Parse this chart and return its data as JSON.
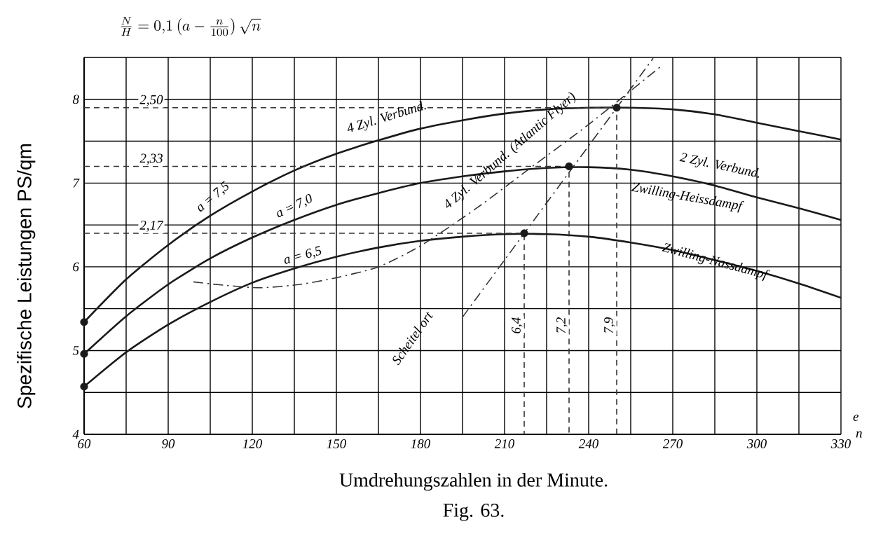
{
  "chart_data": {
    "type": "line",
    "title": "\\frac{N}{H} = 0{,}1\\left(a - \\frac{n}{100}\\right)\\sqrt{n}",
    "xlabel": "Umdrehungszahlen in der Minute.",
    "ylabel": "Spezifische Leistungen PS/qm",
    "xlim": [
      60,
      330
    ],
    "ylim": [
      4,
      8.5
    ],
    "xticks": [
      60,
      {
        "value": 75,
        "label": null
      },
      90,
      {
        "value": 105,
        "label": null
      },
      120,
      {
        "value": 135,
        "label": null
      },
      150,
      {
        "value": 165,
        "label": null
      },
      180,
      {
        "value": 195,
        "label": null
      },
      210,
      {
        "value": 225,
        "label": null
      },
      240,
      {
        "value": 255,
        "label": null
      },
      270,
      {
        "value": 285,
        "label": null
      },
      300,
      {
        "value": 315,
        "label": null
      },
      330
    ],
    "yticks": [
      4,
      {
        "value": 4.5,
        "label": null
      },
      5,
      {
        "value": 5.5,
        "label": null
      },
      6,
      {
        "value": 6.5,
        "label": null
      },
      7,
      {
        "value": 7.5,
        "label": null
      },
      8,
      {
        "value": 8.5,
        "label": null
      }
    ],
    "grid": true,
    "series": [
      {
        "color": "#1a1a1a",
        "line_style": "solid",
        "x": [
          60,
          75,
          90,
          105,
          120,
          135,
          150,
          165,
          180,
          195,
          210,
          225,
          240,
          255,
          270,
          285,
          300,
          315,
          330
        ],
        "values": [
          5.34,
          5.85,
          6.26,
          6.61,
          6.9,
          7.15,
          7.35,
          7.51,
          7.65,
          7.75,
          7.83,
          7.88,
          7.9,
          7.9,
          7.88,
          7.82,
          7.72,
          7.62,
          7.52
        ]
      },
      {
        "color": "#1a1a1a",
        "line_style": "solid",
        "x": [
          60,
          75,
          90,
          105,
          120,
          135,
          150,
          165,
          180,
          195,
          210,
          225,
          240,
          255,
          270,
          285,
          300,
          315,
          330
        ],
        "values": [
          4.96,
          5.41,
          5.79,
          6.1,
          6.35,
          6.56,
          6.74,
          6.88,
          7.0,
          7.08,
          7.14,
          7.18,
          7.19,
          7.16,
          7.08,
          6.97,
          6.83,
          6.7,
          6.56
        ]
      },
      {
        "color": "#1a1a1a",
        "line_style": "solid",
        "x": [
          60,
          75,
          90,
          105,
          120,
          135,
          150,
          165,
          180,
          195,
          210,
          225,
          240,
          255,
          270,
          285,
          300,
          315,
          330
        ],
        "values": [
          4.57,
          4.98,
          5.31,
          5.58,
          5.81,
          5.98,
          6.12,
          6.23,
          6.31,
          6.36,
          6.39,
          6.39,
          6.36,
          6.29,
          6.2,
          6.08,
          5.95,
          5.8,
          5.63
        ]
      },
      {
        "color": "#333333",
        "line_style": "dashdot",
        "x": [
          99,
          110,
          123,
          137,
          150,
          165,
          180,
          200,
          220,
          240,
          266
        ],
        "values": [
          5.82,
          5.78,
          5.75,
          5.79,
          5.87,
          6.0,
          6.25,
          6.7,
          7.2,
          7.7,
          8.4
        ]
      },
      {
        "color": "#333333",
        "line_style": "dashdot",
        "x": [
          195,
          263
        ],
        "values": [
          5.4,
          8.49
        ]
      },
      {
        "color": "#333333",
        "line_style": "dashed",
        "x": [
          60,
          250,
          250
        ],
        "values": [
          7.9,
          7.9,
          4
        ]
      },
      {
        "color": "#333333",
        "line_style": "dashed",
        "x": [
          60,
          233,
          233
        ],
        "values": [
          7.2,
          7.2,
          4
        ]
      },
      {
        "color": "#333333",
        "line_style": "dashed",
        "x": [
          60,
          217,
          217
        ],
        "values": [
          6.4,
          6.4,
          4
        ]
      },
      {
        "type": "scatter",
        "color": "#1a1a1a",
        "marker": "circle",
        "x": [
          217,
          233,
          250
        ],
        "values": [
          6.4,
          7.2,
          7.9
        ]
      },
      {
        "type": "scatter",
        "color": "#1a1a1a",
        "marker": "circle",
        "x": [
          60,
          60,
          60
        ],
        "values": [
          5.34,
          4.96,
          4.57
        ]
      }
    ],
    "annotations": [
      {
        "text": "2,50",
        "x": 84,
        "y": 7.9
      },
      {
        "text": "2,33",
        "x": 84,
        "y": 7.2
      },
      {
        "text": "2,17",
        "x": 84,
        "y": 6.4
      },
      {
        "text": "6,4",
        "x": 217,
        "y": 5.3
      },
      {
        "text": "7,2",
        "x": 233,
        "y": 5.3
      },
      {
        "text": "7,9",
        "x": 250,
        "y": 5.3
      },
      "a = 7,5",
      "a = 7,0",
      "a = 6,5",
      "4 Zyl. Verbund.",
      "2 Zyl. Verbund.",
      "Zwilling-Heissdampf",
      "Zwilling-Nassdampf",
      "4 Zyl. Verbund. (Atlantic Flyer)",
      "Scheitel ort",
      "e",
      "n",
      "Fig. 63."
    ]
  }
}
